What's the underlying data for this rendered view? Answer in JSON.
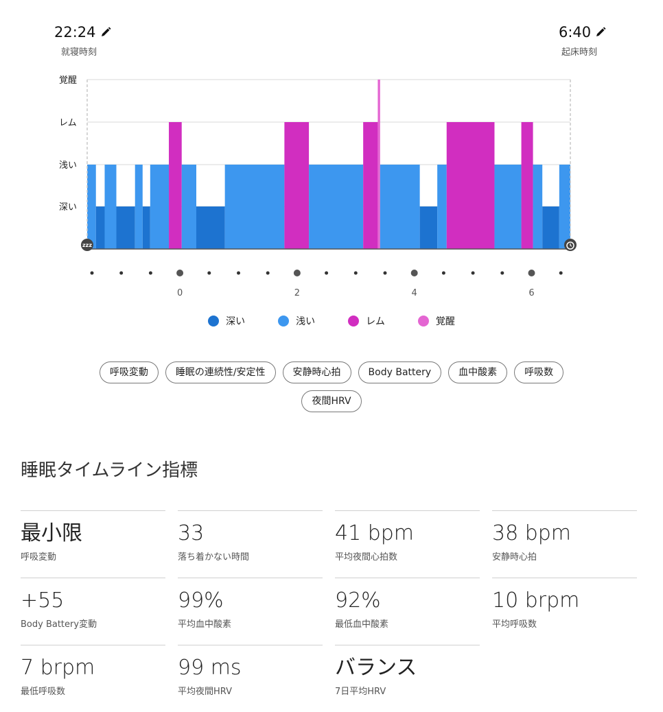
{
  "header": {
    "bedtime": {
      "time": "22:24",
      "label": "就寝時刻"
    },
    "waketime": {
      "time": "6:40",
      "label": "起床時刻"
    }
  },
  "chart_data": {
    "type": "step-area",
    "y_levels": [
      "深い",
      "浅い",
      "レム",
      "覚醒"
    ],
    "x_ticks": [
      "0",
      "2",
      "4",
      "6"
    ],
    "x_range_hours": [
      -1.6,
      6.68
    ],
    "colors": {
      "深い": "#1d73d0",
      "浅い": "#3d97ef",
      "レム": "#d12ec0",
      "覚醒": "#e466d2"
    },
    "segments": [
      {
        "start": -1.6,
        "end": -1.45,
        "stage": "浅い"
      },
      {
        "start": -1.45,
        "end": -1.3,
        "stage": "深い"
      },
      {
        "start": -1.3,
        "end": -1.1,
        "stage": "浅い"
      },
      {
        "start": -1.1,
        "end": -0.78,
        "stage": "深い"
      },
      {
        "start": -0.78,
        "end": -0.65,
        "stage": "浅い"
      },
      {
        "start": -0.65,
        "end": -0.52,
        "stage": "深い"
      },
      {
        "start": -0.52,
        "end": -0.2,
        "stage": "浅い"
      },
      {
        "start": -0.2,
        "end": 0.02,
        "stage": "レム"
      },
      {
        "start": 0.02,
        "end": 0.27,
        "stage": "浅い"
      },
      {
        "start": 0.27,
        "end": 0.76,
        "stage": "深い"
      },
      {
        "start": 0.76,
        "end": 1.78,
        "stage": "浅い"
      },
      {
        "start": 1.78,
        "end": 2.2,
        "stage": "レム"
      },
      {
        "start": 2.2,
        "end": 3.13,
        "stage": "浅い"
      },
      {
        "start": 3.13,
        "end": 3.38,
        "stage": "レム"
      },
      {
        "start": 3.38,
        "end": 3.42,
        "stage": "覚醒"
      },
      {
        "start": 3.42,
        "end": 4.1,
        "stage": "浅い"
      },
      {
        "start": 4.1,
        "end": 4.4,
        "stage": "深い"
      },
      {
        "start": 4.4,
        "end": 4.56,
        "stage": "浅い"
      },
      {
        "start": 4.56,
        "end": 5.38,
        "stage": "レム"
      },
      {
        "start": 5.38,
        "end": 5.84,
        "stage": "浅い"
      },
      {
        "start": 5.84,
        "end": 6.04,
        "stage": "レム"
      },
      {
        "start": 6.04,
        "end": 6.2,
        "stage": "浅い"
      },
      {
        "start": 6.2,
        "end": 6.49,
        "stage": "深い"
      },
      {
        "start": 6.49,
        "end": 6.68,
        "stage": "浅い"
      }
    ]
  },
  "legend": [
    {
      "label": "深い",
      "color": "#1d73d0"
    },
    {
      "label": "浅い",
      "color": "#3d97ef"
    },
    {
      "label": "レム",
      "color": "#d12ec0"
    },
    {
      "label": "覚醒",
      "color": "#e466d2"
    }
  ],
  "chips": [
    "呼吸変動",
    "睡眠の連続性/安定性",
    "安静時心拍",
    "Body Battery",
    "血中酸素",
    "呼吸数",
    "夜間HRV"
  ],
  "section_title": "睡眠タイムライン指標",
  "metrics": [
    {
      "value": "最小限",
      "label": "呼吸変動"
    },
    {
      "value": "33",
      "label": "落ち着かない時間"
    },
    {
      "value": "41 bpm",
      "label": "平均夜間心拍数"
    },
    {
      "value": "38 bpm",
      "label": "安静時心拍"
    },
    {
      "value": "+55",
      "label": "Body Battery変動"
    },
    {
      "value": "99%",
      "label": "平均血中酸素"
    },
    {
      "value": "92%",
      "label": "最低血中酸素"
    },
    {
      "value": "10 brpm",
      "label": "平均呼吸数"
    },
    {
      "value": "7 brpm",
      "label": "最低呼吸数"
    },
    {
      "value": "99 ms",
      "label": "平均夜間HRV"
    },
    {
      "value": "バランス",
      "label": "7日平均HRV"
    }
  ]
}
